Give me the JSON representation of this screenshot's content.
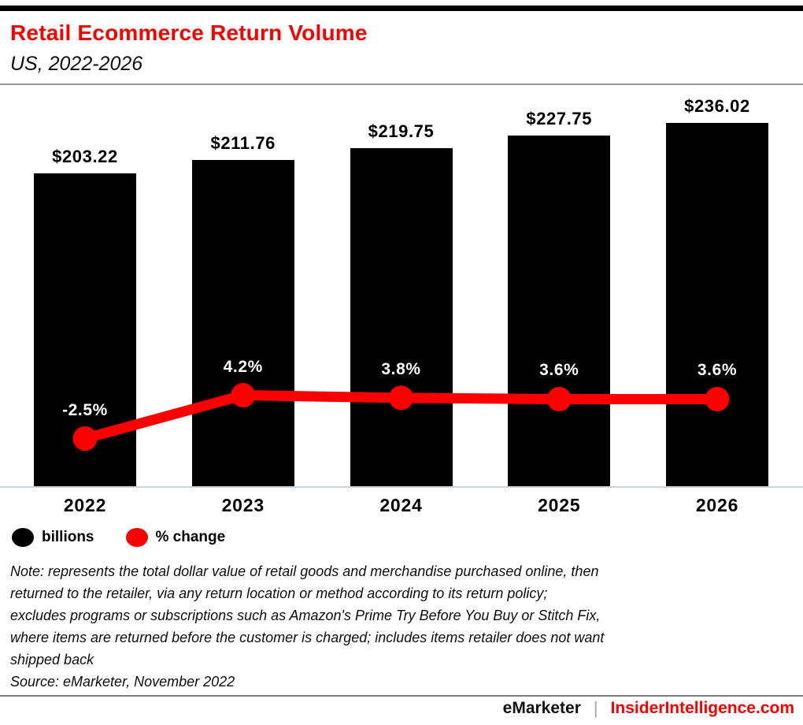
{
  "header": {
    "title": "Retail Ecommerce Return Volume",
    "subtitle": "US, 2022-2026"
  },
  "chart_data": {
    "type": "bar",
    "title": "Retail Ecommerce Return Volume",
    "subtitle": "US, 2022-2026",
    "categories": [
      "2022",
      "2023",
      "2024",
      "2025",
      "2026"
    ],
    "series": [
      {
        "name": "billions",
        "type": "bar",
        "unit": "US$ billions",
        "values": [
          203.22,
          211.76,
          219.75,
          227.75,
          236.02
        ],
        "labels": [
          "$203.22",
          "$211.76",
          "$219.75",
          "$227.75",
          "$236.02"
        ],
        "color": "#000000"
      },
      {
        "name": "% change",
        "type": "line",
        "unit": "percent",
        "values": [
          -2.5,
          4.2,
          3.8,
          3.6,
          3.6
        ],
        "labels": [
          "-2.5%",
          "4.2%",
          "3.8%",
          "3.6%",
          "3.6%"
        ],
        "color": "#fb0000"
      }
    ],
    "xlabel": "",
    "ylabel": "",
    "grid": false,
    "legend_position": "bottom-left"
  },
  "legend": {
    "items": [
      {
        "label": "billions",
        "color": "#000000"
      },
      {
        "label": "% change",
        "color": "#fb0000"
      }
    ]
  },
  "note": {
    "lines": [
      "Note: represents the total dollar value of retail goods and merchandise purchased online, then",
      "returned to the retailer, via any return location or method according to its return policy;",
      "excludes programs or subscriptions such as Amazon's Prime Try Before You Buy or Stitch Fix,",
      "where items are returned before the customer is charged; includes items retailer does not want",
      "shipped back"
    ],
    "source": "Source: eMarketer, November 2022"
  },
  "footer": {
    "brand": "eMarketer",
    "divider": "|",
    "site": "InsiderIntelligence.com"
  },
  "colors": {
    "accent_red": "#fb0000",
    "bar_black": "#000000",
    "axis_line": "#ccd4e2"
  }
}
